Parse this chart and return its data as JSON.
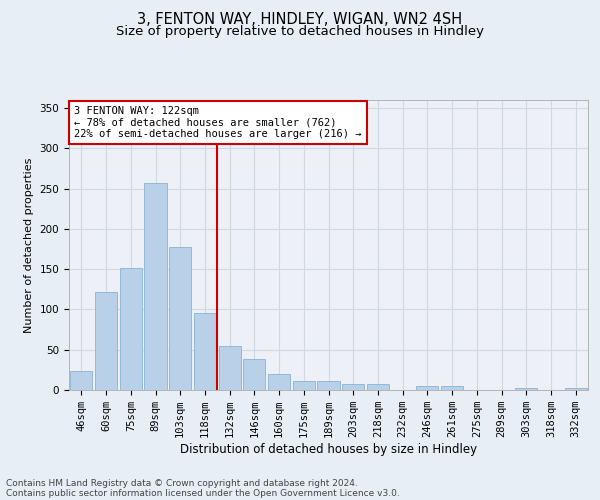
{
  "title_line1": "3, FENTON WAY, HINDLEY, WIGAN, WN2 4SH",
  "title_line2": "Size of property relative to detached houses in Hindley",
  "xlabel": "Distribution of detached houses by size in Hindley",
  "ylabel": "Number of detached properties",
  "bar_labels": [
    "46sqm",
    "60sqm",
    "75sqm",
    "89sqm",
    "103sqm",
    "118sqm",
    "132sqm",
    "146sqm",
    "160sqm",
    "175sqm",
    "189sqm",
    "203sqm",
    "218sqm",
    "232sqm",
    "246sqm",
    "261sqm",
    "275sqm",
    "289sqm",
    "303sqm",
    "318sqm",
    "332sqm"
  ],
  "bar_heights": [
    23,
    122,
    152,
    257,
    178,
    95,
    55,
    38,
    20,
    11,
    11,
    7,
    7,
    0,
    5,
    5,
    0,
    0,
    2,
    0,
    2
  ],
  "bar_color": "#b8d0e8",
  "bar_edge_color": "#7aaacb",
  "vline_x_idx": 5.5,
  "vline_color": "#cc0000",
  "annotation_text": "3 FENTON WAY: 122sqm\n← 78% of detached houses are smaller (762)\n22% of semi-detached houses are larger (216) →",
  "annotation_box_color": "#ffffff",
  "annotation_box_edge": "#cc0000",
  "ylim": [
    0,
    360
  ],
  "yticks": [
    0,
    50,
    100,
    150,
    200,
    250,
    300,
    350
  ],
  "grid_color": "#d0d8e4",
  "background_color": "#e8eef5",
  "plot_bg_color": "#edf1f7",
  "footer_line1": "Contains HM Land Registry data © Crown copyright and database right 2024.",
  "footer_line2": "Contains public sector information licensed under the Open Government Licence v3.0.",
  "title_fontsize": 10.5,
  "subtitle_fontsize": 9.5,
  "xlabel_fontsize": 8.5,
  "ylabel_fontsize": 8,
  "tick_fontsize": 7.5,
  "footer_fontsize": 6.5
}
